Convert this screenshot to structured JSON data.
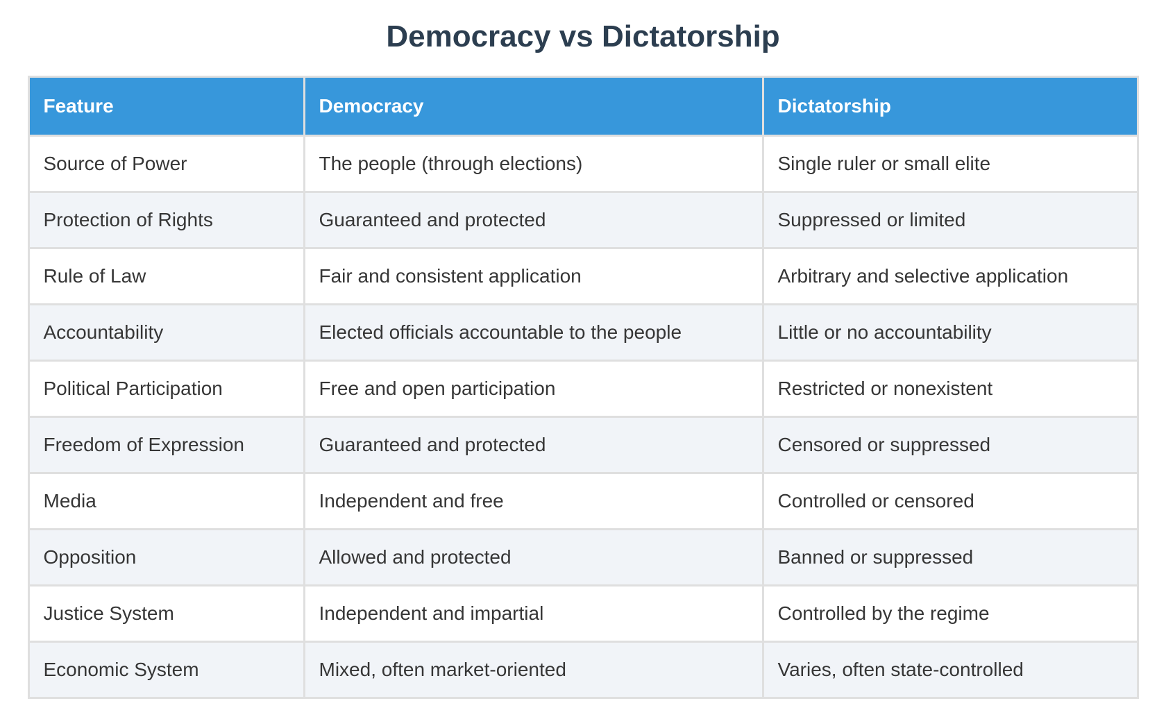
{
  "title": "Democracy vs Dictatorship",
  "colors": {
    "header_bg": "#3797db",
    "header_text": "#ffffff",
    "title_text": "#2c3e50",
    "cell_text": "#363636",
    "row_alt_bg": "#f1f4f8",
    "border": "#dfdfdf"
  },
  "table": {
    "headers": [
      "Feature",
      "Democracy",
      "Dictatorship"
    ],
    "rows": [
      {
        "feature": "Source of Power",
        "democracy": "The people (through elections)",
        "dictatorship": "Single ruler or small elite"
      },
      {
        "feature": "Protection of Rights",
        "democracy": "Guaranteed and protected",
        "dictatorship": "Suppressed or limited"
      },
      {
        "feature": "Rule of Law",
        "democracy": "Fair and consistent application",
        "dictatorship": "Arbitrary and selective application"
      },
      {
        "feature": "Accountability",
        "democracy": "Elected officials accountable to the people",
        "dictatorship": "Little or no accountability"
      },
      {
        "feature": "Political Participation",
        "democracy": "Free and open participation",
        "dictatorship": "Restricted or nonexistent"
      },
      {
        "feature": "Freedom of Expression",
        "democracy": "Guaranteed and protected",
        "dictatorship": "Censored or suppressed"
      },
      {
        "feature": "Media",
        "democracy": "Independent and free",
        "dictatorship": "Controlled or censored"
      },
      {
        "feature": "Opposition",
        "democracy": "Allowed and protected",
        "dictatorship": "Banned or suppressed"
      },
      {
        "feature": "Justice System",
        "democracy": "Independent and impartial",
        "dictatorship": "Controlled by the regime"
      },
      {
        "feature": "Economic System",
        "democracy": "Mixed, often market-oriented",
        "dictatorship": "Varies, often state-controlled"
      }
    ]
  }
}
